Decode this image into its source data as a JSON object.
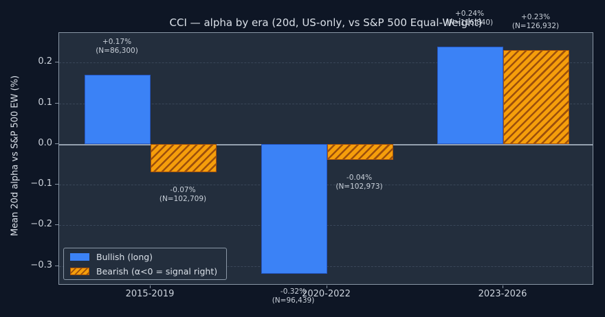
{
  "figure": {
    "background": "#0e1625",
    "plot_background": "#232e3d",
    "text_color": "#dae0e8",
    "axis_color": "#8b98a7",
    "grid_color": "#3a4759",
    "zero_line_color": "#95a1af"
  },
  "chart_data": {
    "type": "bar",
    "title": "CCI — alpha by era (20d, US-only, vs S&P 500 Equal-Weight)",
    "ylabel": "Mean 20d alpha vs S&P 500 EW (%)",
    "xlabel": "",
    "categories": [
      "2015-2019",
      "2020-2022",
      "2023-2026"
    ],
    "series": [
      {
        "key": "bullish",
        "name": "Bullish (long)",
        "color": "#3b82f6",
        "edge_color": "#2456c4",
        "hatch": false,
        "values": [
          0.17,
          -0.32,
          0.24
        ],
        "value_labels": [
          "+0.17%",
          "-0.32%",
          "+0.24%"
        ],
        "n_labels": [
          "(N=86,300)",
          "(N=96,439)",
          "(N=116,840)"
        ]
      },
      {
        "key": "bearish",
        "name": "Bearish (α<0 = signal right)",
        "color": "#f59e0b",
        "edge_color": "#a8520a",
        "hatch": true,
        "hatch_color": "#9c4f0c",
        "values": [
          -0.07,
          -0.04,
          0.23
        ],
        "value_labels": [
          "-0.07%",
          "-0.04%",
          "+0.23%"
        ],
        "n_labels": [
          "(N=102,709)",
          "(N=102,973)",
          "(N=126,932)"
        ]
      }
    ],
    "yticks": [
      {
        "label": "0.2",
        "value": 0.2
      },
      {
        "label": "0.1",
        "value": 0.1
      },
      {
        "label": "0.0",
        "value": 0.0
      },
      {
        "label": "−0.1",
        "value": -0.1
      },
      {
        "label": "−0.2",
        "value": -0.2
      },
      {
        "label": "−0.3",
        "value": -0.3
      }
    ],
    "ylim": [
      -0.348,
      0.273
    ],
    "grid": "horizontal-dashed",
    "zero_line": true,
    "legend_position": "lower-left"
  }
}
